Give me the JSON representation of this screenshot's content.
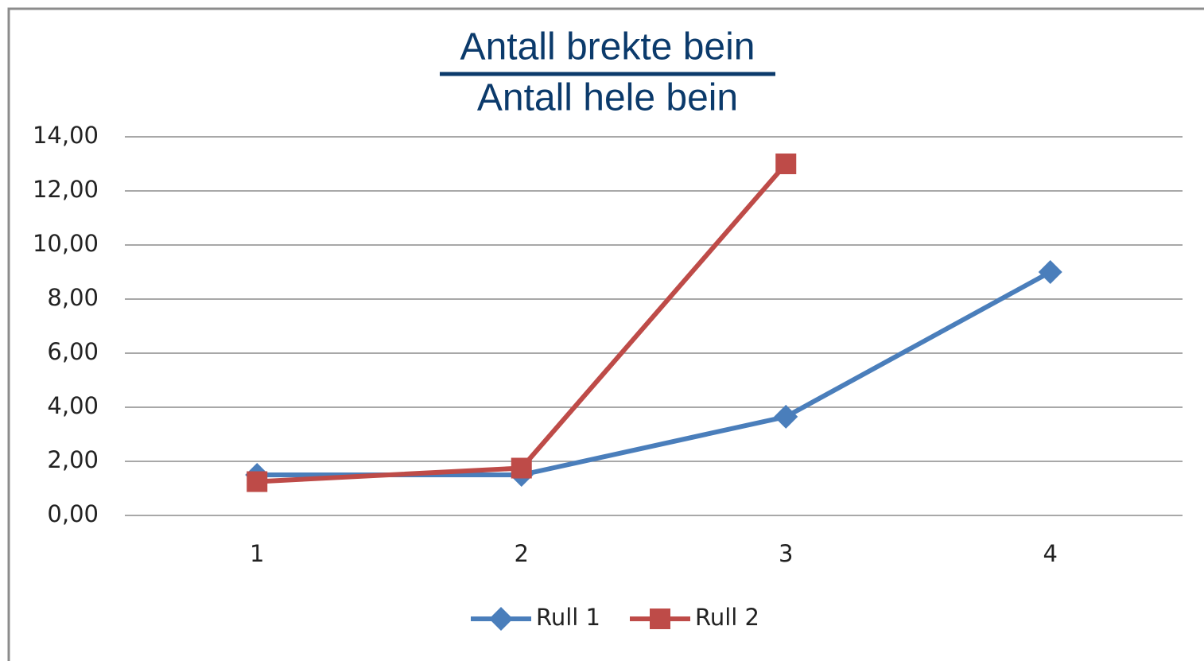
{
  "chart_data": {
    "type": "line",
    "title": {
      "numerator": "Antall brekte bein",
      "denominator": "Antall hele bein"
    },
    "categories": [
      "1",
      "2",
      "3",
      "4"
    ],
    "series": [
      {
        "name": "Rull 1",
        "color": "#4a7ebb",
        "marker": "diamond",
        "values": [
          1.5,
          1.5,
          3.65,
          9.0
        ]
      },
      {
        "name": "Rull 2",
        "color": "#be4b48",
        "marker": "square",
        "values": [
          1.25,
          1.75,
          13.0,
          null
        ]
      }
    ],
    "ylim": [
      0,
      14
    ],
    "yticks": [
      {
        "value": 0,
        "label": "0,00"
      },
      {
        "value": 2,
        "label": "2,00"
      },
      {
        "value": 4,
        "label": "4,00"
      },
      {
        "value": 6,
        "label": "6,00"
      },
      {
        "value": 8,
        "label": "8,00"
      },
      {
        "value": 10,
        "label": "10,00"
      },
      {
        "value": 12,
        "label": "12,00"
      },
      {
        "value": 14,
        "label": "14,00"
      }
    ],
    "grid": true,
    "legend": "bottom"
  }
}
